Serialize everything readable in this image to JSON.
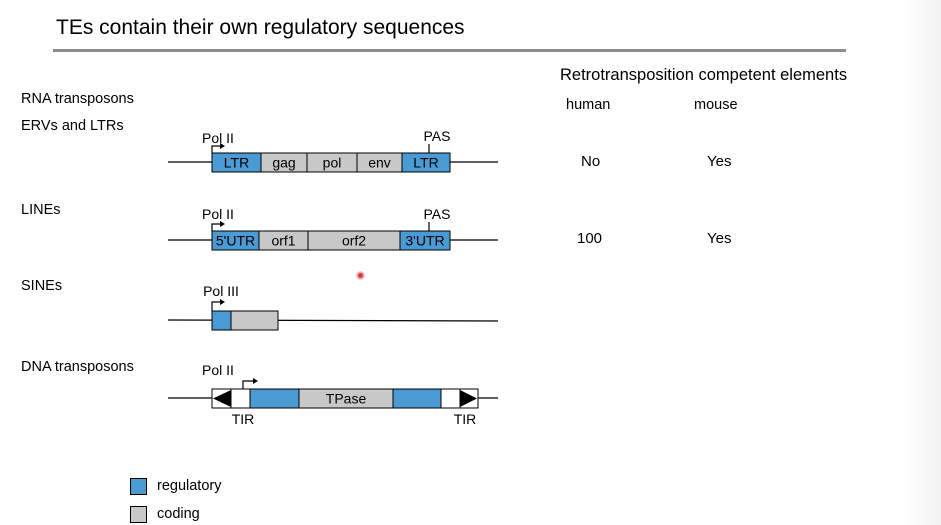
{
  "title": "TEs contain their own regulatory sequences",
  "colors": {
    "regulatory": "#4a9ad4",
    "coding": "#c8c8c8"
  },
  "categories": {
    "rna": "RNA transposons",
    "erv": "ERVs and LTRs",
    "line": "LINEs",
    "sine": "SINEs",
    "dna": "DNA transposons"
  },
  "table": {
    "header": "Retrotransposition competent elements",
    "col_human": "human",
    "col_mouse": "mouse",
    "rows": [
      {
        "human": "No",
        "mouse": "Yes"
      },
      {
        "human": "100",
        "mouse": "Yes"
      }
    ]
  },
  "erv": {
    "promoter": "Pol II",
    "pas": "PAS",
    "segments": [
      "LTR",
      "gag",
      "pol",
      "env",
      "LTR"
    ]
  },
  "line": {
    "promoter": "Pol II",
    "pas": "PAS",
    "segments": [
      "5'UTR",
      "orf1",
      "orf2",
      "3'UTR"
    ]
  },
  "sine": {
    "promoter": "Pol III"
  },
  "dna": {
    "promoter": "Pol II",
    "segment": "TPase",
    "tir_left": "TIR",
    "tir_right": "TIR"
  },
  "legend": {
    "regulatory": "regulatory",
    "coding": "coding"
  }
}
